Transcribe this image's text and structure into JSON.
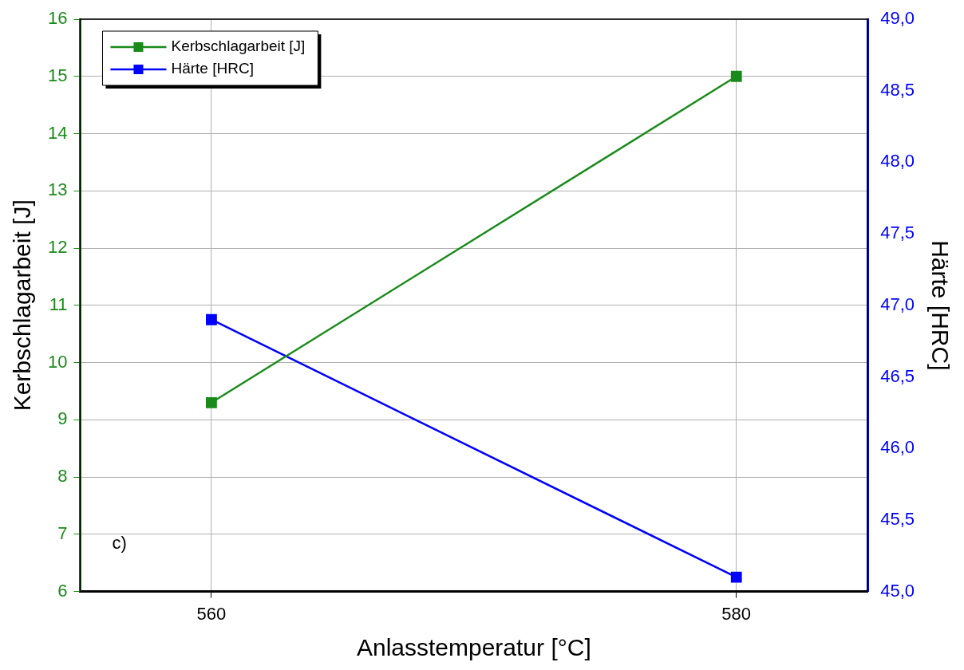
{
  "chart_data": {
    "type": "line",
    "xlabel": "Anlasstemperatur [°C]",
    "ylabel": "Kerbschlagarbeit [J]",
    "y2label": "Härte [HRC]",
    "x": [
      560,
      580
    ],
    "series": [
      {
        "name": "Kerbschlagarbeit [J]",
        "color": "#1a8a1a",
        "values": [
          9.3,
          15.0
        ]
      },
      {
        "name": "Härte [HRC]",
        "color": "#0000ff",
        "values": [
          46.9,
          45.1
        ],
        "axis": "y2"
      }
    ],
    "xlim": [
      555,
      585
    ],
    "xticks": [
      560,
      580
    ],
    "ylim": [
      6,
      16
    ],
    "yticks": [
      6,
      7,
      8,
      9,
      10,
      11,
      12,
      13,
      14,
      15,
      16
    ],
    "y2lim": [
      45,
      49
    ],
    "y2ticks": [
      {
        "value": 45,
        "label": "45,0"
      },
      {
        "value": 45.5,
        "label": "45,5"
      },
      {
        "value": 46,
        "label": "46,0"
      },
      {
        "value": 46.5,
        "label": "46,5"
      },
      {
        "value": 47,
        "label": "47,0"
      },
      {
        "value": 47.5,
        "label": "47,5"
      },
      {
        "value": 48,
        "label": "48,0"
      },
      {
        "value": 48.5,
        "label": "48,5"
      },
      {
        "value": 49,
        "label": "49,0"
      }
    ],
    "annotations": [
      "c)"
    ],
    "grid": true,
    "legend": "top left",
    "marker": "square",
    "line_style": "solid"
  }
}
